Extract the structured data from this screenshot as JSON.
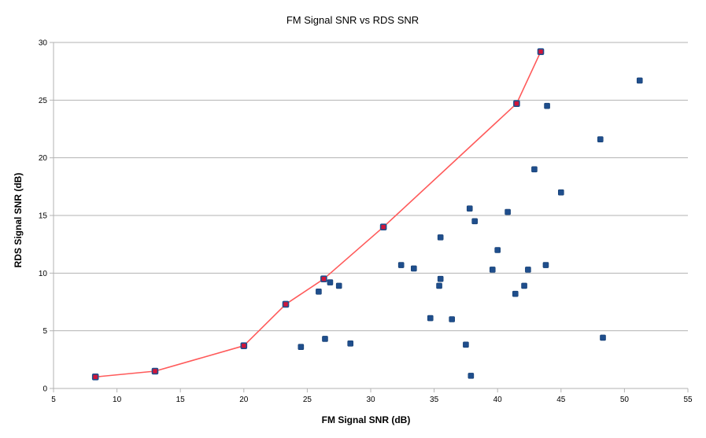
{
  "chart_data": {
    "type": "scatter",
    "title": "FM Signal SNR vs RDS SNR",
    "xlabel": "FM Signal SNR (dB)",
    "ylabel": "RDS Signal SNR (dB)",
    "xlim": [
      5,
      55
    ],
    "ylim": [
      0,
      30
    ],
    "x_ticks": [
      5,
      10,
      15,
      20,
      25,
      30,
      35,
      40,
      45,
      50,
      55
    ],
    "y_ticks": [
      0,
      5,
      10,
      15,
      20,
      25,
      30
    ],
    "grid": "horizontal",
    "legend": "none",
    "series": [
      {
        "marker": "square",
        "color": "#1f4e8c",
        "points": [
          [
            8.3,
            1.0
          ],
          [
            13.0,
            1.5
          ],
          [
            20.0,
            3.7
          ],
          [
            23.3,
            7.3
          ],
          [
            24.5,
            3.6
          ],
          [
            25.9,
            8.4
          ],
          [
            26.3,
            9.5
          ],
          [
            26.4,
            4.3
          ],
          [
            26.8,
            9.2
          ],
          [
            27.5,
            8.9
          ],
          [
            28.4,
            3.9
          ],
          [
            31.0,
            14.0
          ],
          [
            32.4,
            10.7
          ],
          [
            33.4,
            10.4
          ],
          [
            34.7,
            6.1
          ],
          [
            35.4,
            8.9
          ],
          [
            35.5,
            13.1
          ],
          [
            35.5,
            9.5
          ],
          [
            36.4,
            6.0
          ],
          [
            37.5,
            3.8
          ],
          [
            37.8,
            15.6
          ],
          [
            37.9,
            1.1
          ],
          [
            38.2,
            14.5
          ],
          [
            39.6,
            10.3
          ],
          [
            40.0,
            12.0
          ],
          [
            40.8,
            15.3
          ],
          [
            41.4,
            8.2
          ],
          [
            41.5,
            24.7
          ],
          [
            42.1,
            8.9
          ],
          [
            42.4,
            10.3
          ],
          [
            42.9,
            19.0
          ],
          [
            43.4,
            29.2
          ],
          [
            43.8,
            10.7
          ],
          [
            43.9,
            24.5
          ],
          [
            45.0,
            17.0
          ],
          [
            48.1,
            21.6
          ],
          [
            48.3,
            4.4
          ],
          [
            51.2,
            26.7
          ]
        ]
      },
      {
        "type": "line",
        "color": "#ff5a5a",
        "marker_color": "#d0163a",
        "points": [
          [
            8.3,
            1.0
          ],
          [
            13.0,
            1.5
          ],
          [
            20.0,
            3.7
          ],
          [
            23.3,
            7.3
          ],
          [
            26.3,
            9.5
          ],
          [
            31.0,
            14.0
          ],
          [
            41.5,
            24.7
          ],
          [
            43.4,
            29.2
          ]
        ]
      }
    ]
  }
}
